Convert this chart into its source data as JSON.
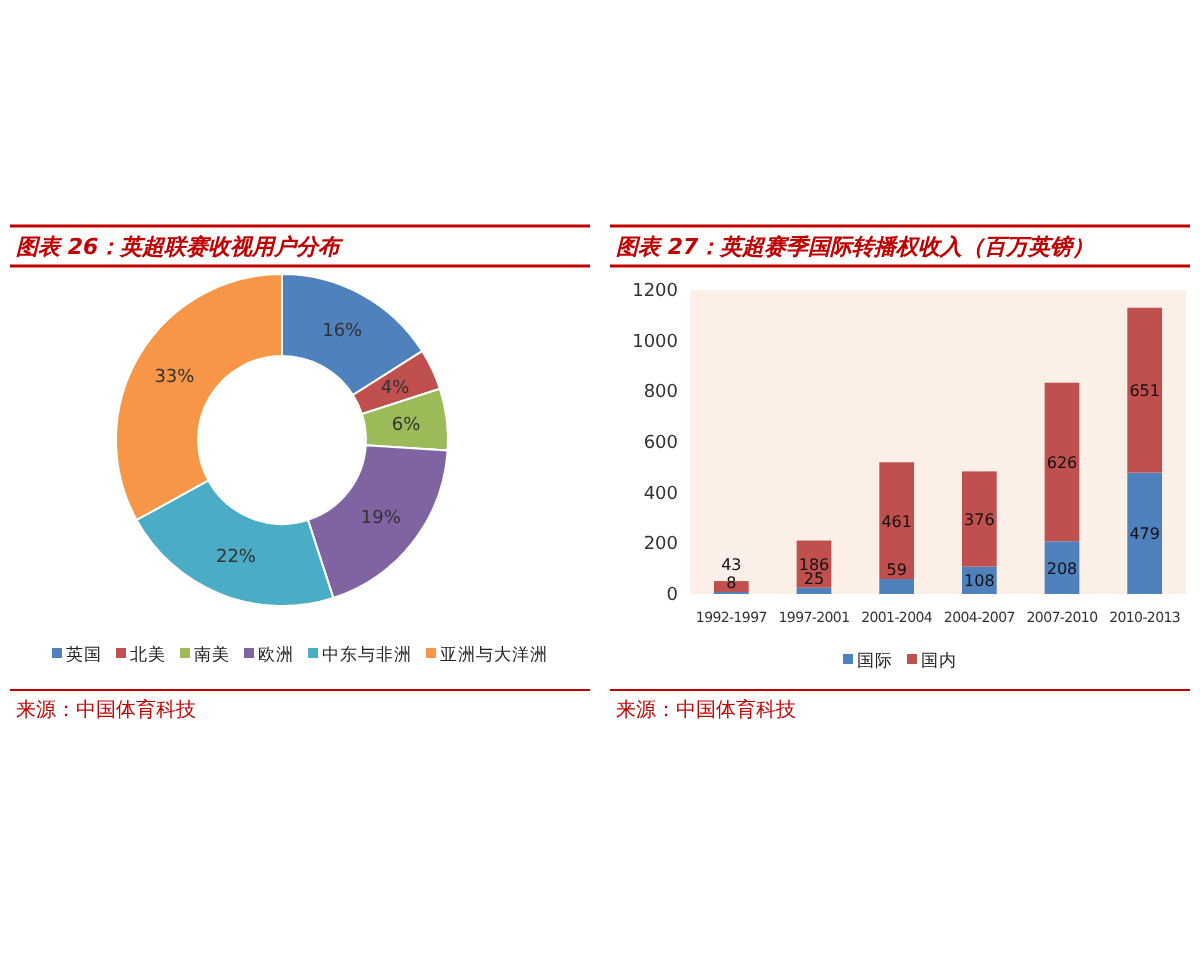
{
  "chart_data": [
    {
      "type": "donut",
      "title": "图表 26：英超联赛收视用户分布",
      "categories": [
        "英国",
        "北美",
        "南美",
        "欧洲",
        "中东与非洲",
        "亚洲与大洋洲"
      ],
      "values": [
        16,
        4,
        6,
        19,
        22,
        33
      ],
      "colors": [
        "#4f81bd",
        "#c0504d",
        "#9bbb59",
        "#8064a2",
        "#4bacc6",
        "#f79646"
      ],
      "value_labels": [
        "16%",
        "4%",
        "6%",
        "19%",
        "22%",
        "33%"
      ],
      "legend": "bottom",
      "annotations": [
        "来源：中国体育科技"
      ]
    },
    {
      "type": "bar",
      "stacked": true,
      "title": "图表 27：英超赛季国际转播权收入（百万英镑）",
      "categories": [
        "1992-1997",
        "1997-2001",
        "2001-2004",
        "2004-2007",
        "2007-2010",
        "2010-2013"
      ],
      "series": [
        {
          "name": "国际",
          "color": "#4f81bd",
          "values": [
            8,
            25,
            59,
            108,
            208,
            479
          ]
        },
        {
          "name": "国内",
          "color": "#c0504d",
          "values": [
            43,
            186,
            461,
            376,
            626,
            651
          ]
        }
      ],
      "ylim": [
        0,
        1200
      ],
      "yticks": [
        0,
        200,
        400,
        600,
        800,
        1000,
        1200
      ],
      "data_labels": true,
      "legend": "bottom",
      "annotations": [
        "来源：中国体育科技"
      ]
    }
  ]
}
